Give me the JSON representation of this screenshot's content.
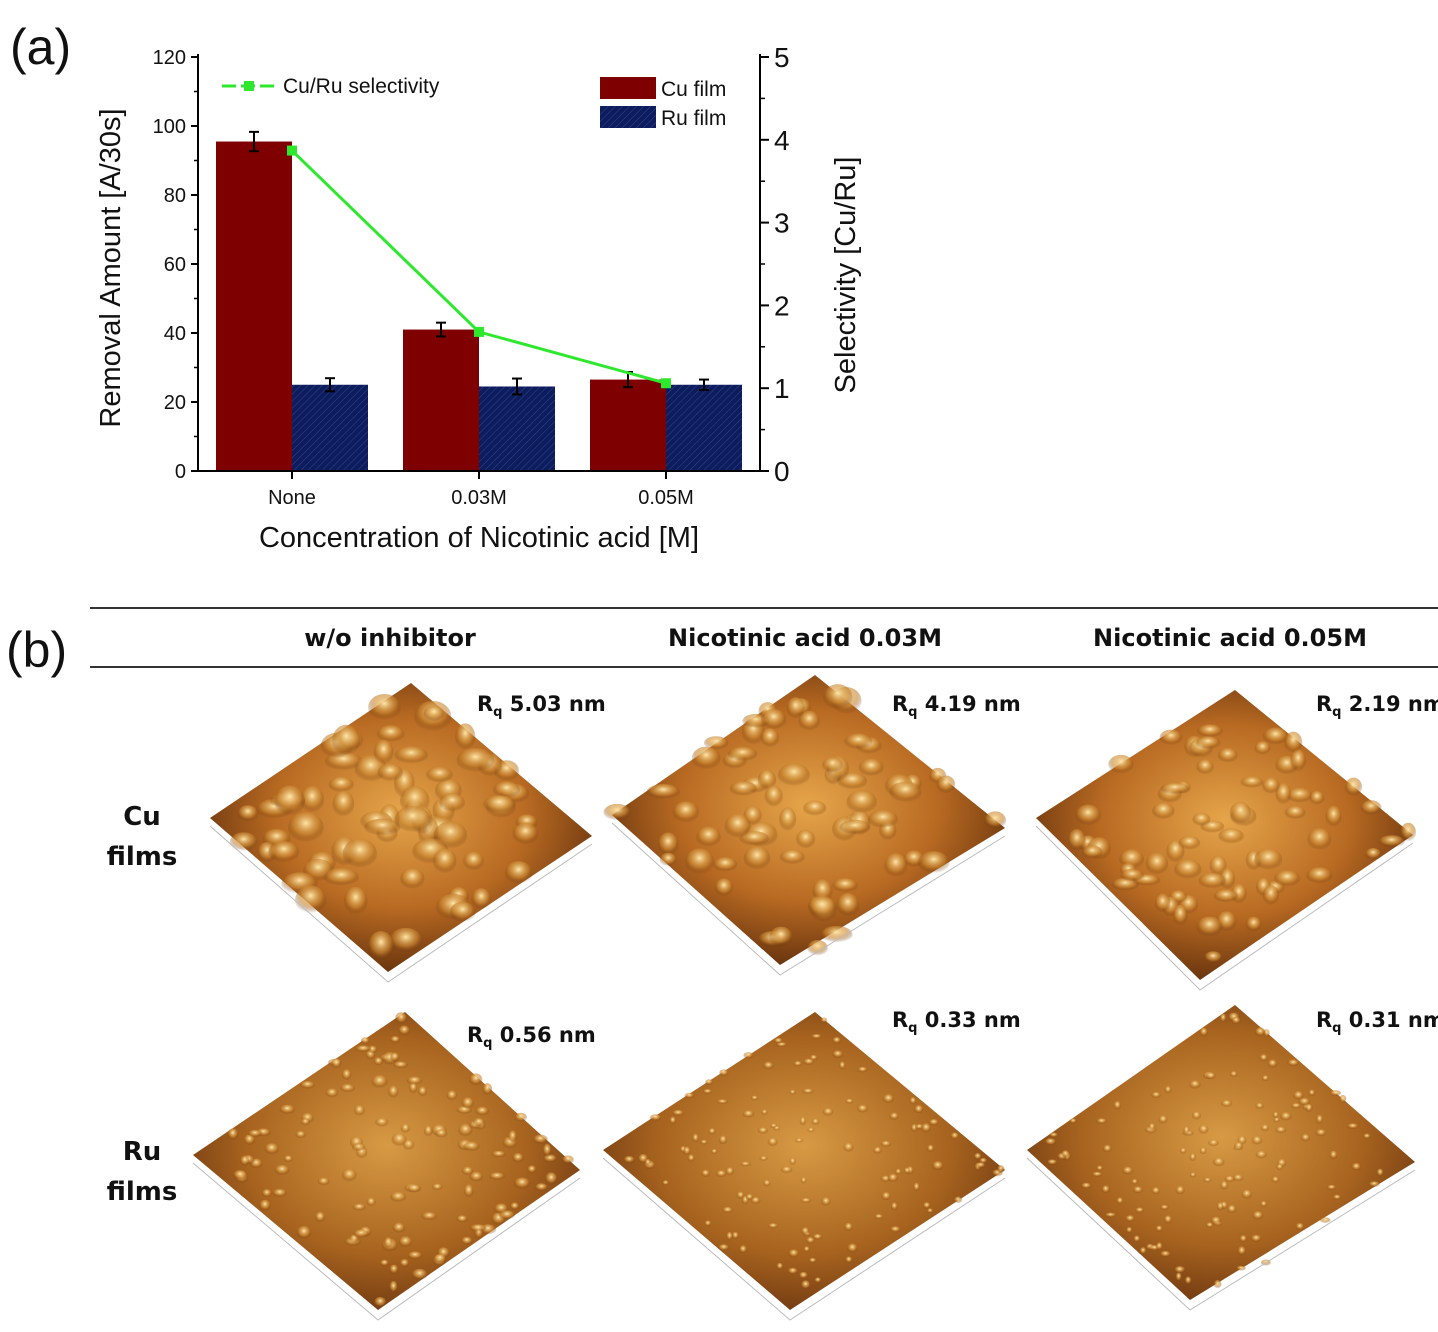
{
  "panels": {
    "a_label": "(a)",
    "b_label": "(b)"
  },
  "colors": {
    "cu": "#7f0000",
    "ru": "#0c1c5c",
    "selectivity": "#2ee82e"
  },
  "chart_data": {
    "type": "bar",
    "categories": [
      "None",
      "0.03M",
      "0.05M"
    ],
    "series": [
      {
        "name": "Cu film",
        "values": [
          95.5,
          41,
          26.5
        ],
        "errors": [
          2.8,
          2.0,
          2.2
        ]
      },
      {
        "name": "Ru film",
        "values": [
          25,
          24.5,
          25
        ],
        "errors": [
          1.9,
          2.3,
          1.5
        ]
      }
    ],
    "line_series": {
      "name": "Cu/Ru selectivity",
      "values": [
        3.87,
        1.68,
        1.06
      ],
      "axis": "right"
    },
    "xlabel": "Concentration of Nicotinic acid [M]",
    "ylabel": "Removal Amount [A/30s]",
    "y2label": "Selectivity [Cu/Ru]",
    "ylim": [
      0,
      120
    ],
    "yticks": [
      0,
      20,
      40,
      60,
      80,
      100,
      120
    ],
    "y2lim": [
      0,
      5
    ],
    "y2ticks": [
      0,
      1,
      2,
      3,
      4,
      5
    ],
    "legend": [
      "Cu film",
      "Ru film"
    ],
    "line_legend": "Cu/Ru selectivity"
  },
  "afm": {
    "headers": [
      "w/o inhibitor",
      "Nicotinic acid 0.03M",
      "Nicotinic acid 0.05M"
    ],
    "rows": [
      {
        "label_line1": "Cu",
        "label_line2": "films",
        "rq_values": [
          "5.03 nm",
          "4.19 nm",
          "2.19 nm"
        ]
      },
      {
        "label_line1": "Ru",
        "label_line2": "films",
        "rq_values": [
          "0.56 nm",
          "0.33 nm",
          "0.31 nm"
        ]
      }
    ],
    "rq_prefix": "R",
    "rq_sub": "q"
  }
}
